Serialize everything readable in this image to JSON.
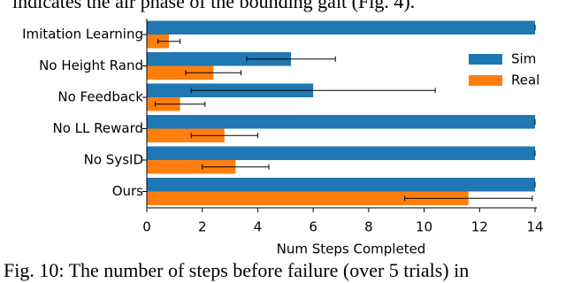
{
  "caption_top": "indicates the air phase of the bounding gait (Fig. 4).",
  "caption": "Fig. 10: The number of steps before failure (over 5 trials) in",
  "chart_data": {
    "type": "barh",
    "xlabel": "Num Steps Completed",
    "categories": [
      "Imitation Learning",
      "No Height Rand",
      "No Feedback",
      "No LL Reward",
      "No SysID",
      "Ours"
    ],
    "series": [
      {
        "name": "Sim",
        "color": "#1f77b4",
        "values": [
          14,
          5.2,
          6,
          14,
          14,
          14
        ],
        "errors": [
          0,
          1.6,
          4.4,
          0,
          0,
          0
        ]
      },
      {
        "name": "Real",
        "color": "#ff7f0e",
        "values": [
          0.8,
          2.4,
          1.2,
          2.8,
          3.2,
          11.6
        ],
        "errors": [
          0.4,
          1.0,
          0.9,
          1.2,
          1.2,
          2.3
        ]
      }
    ],
    "xlim": [
      0,
      14
    ],
    "xticks": [
      0,
      2,
      4,
      6,
      8,
      10,
      12,
      14
    ],
    "legend": "upper right"
  }
}
